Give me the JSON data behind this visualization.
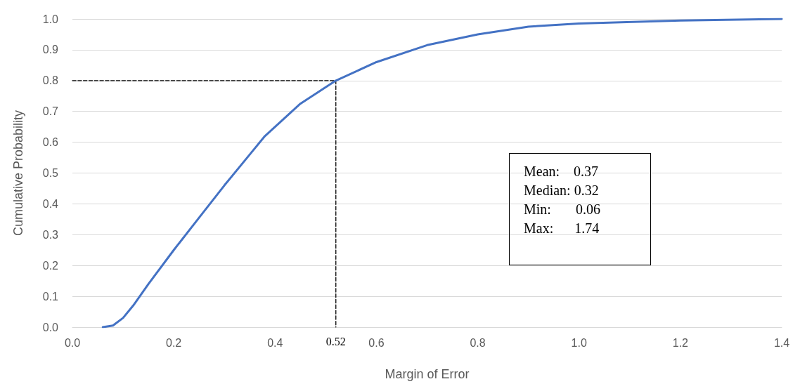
{
  "chart_data": {
    "type": "line",
    "xlabel": "Margin of Error",
    "ylabel": "Cumulative Probability",
    "xlim": [
      0,
      1.4
    ],
    "ylim": [
      0,
      1
    ],
    "xticks": [
      {
        "value": 0,
        "label": "0.0"
      },
      {
        "value": 0.2,
        "label": "0.2"
      },
      {
        "value": 0.4,
        "label": "0.4"
      },
      {
        "value": 0.6,
        "label": "0.6"
      },
      {
        "value": 0.8,
        "label": "0.8"
      },
      {
        "value": 1,
        "label": "1.0"
      },
      {
        "value": 1.2,
        "label": "1.2"
      },
      {
        "value": 1.4,
        "label": "1.4"
      }
    ],
    "yticks": [
      {
        "value": 0,
        "label": "0.0"
      },
      0.1,
      0.2,
      0.3,
      0.4,
      0.5,
      0.6,
      0.7,
      0.8,
      0.9,
      {
        "value": 1,
        "label": "1.0"
      }
    ],
    "grid": "y",
    "marker": "none",
    "series": [
      {
        "color": "#4472c4",
        "line_style": "solid",
        "x": [
          0.06,
          0.08,
          0.1,
          0.12,
          0.15,
          0.2,
          0.25,
          0.3,
          0.35,
          0.38,
          0.45,
          0.52,
          0.6,
          0.7,
          0.8,
          0.9,
          1.0,
          1.2,
          1.4
        ],
        "values": [
          0,
          0.005,
          0.03,
          0.07,
          0.14,
          0.25,
          0.355,
          0.46,
          0.56,
          0.62,
          0.725,
          0.8,
          0.86,
          0.915,
          0.95,
          0.975,
          0.985,
          0.995,
          1.0
        ]
      },
      {
        "color": "#000000",
        "line_style": "dashed",
        "x": [
          0,
          0.52,
          0.52
        ],
        "values": [
          0.8,
          0.8,
          0
        ]
      }
    ],
    "annotations": [
      {
        "text": "0.52",
        "x": 0.52,
        "y": 0
      },
      "Mean:    0.37\nMedian: 0.32\nMin:       0.06\nMax:      1.74"
    ]
  }
}
